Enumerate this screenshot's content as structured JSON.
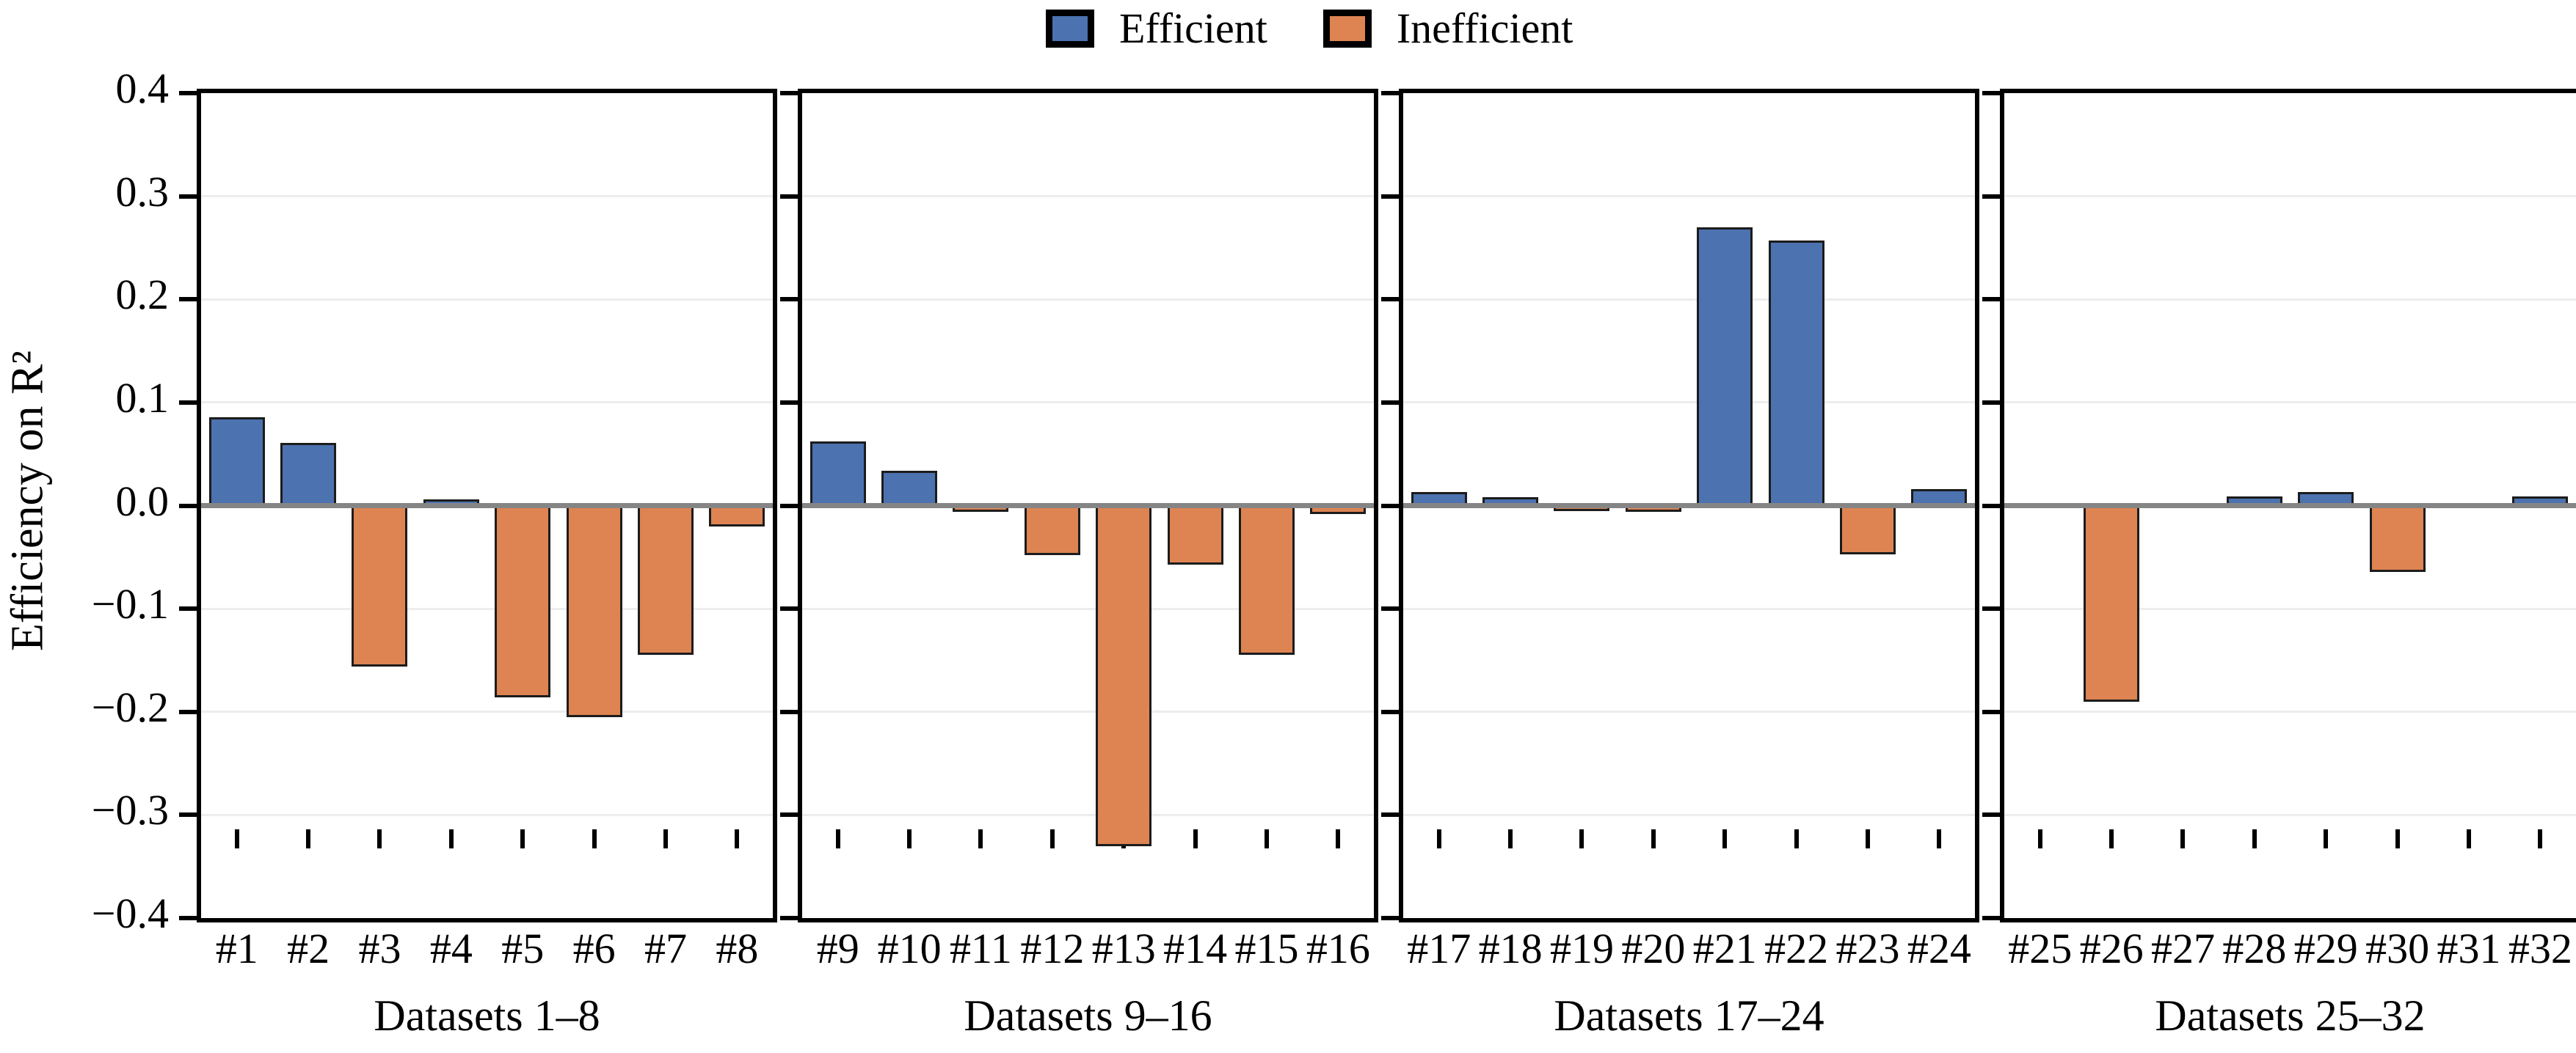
{
  "legend": [
    {
      "label": "Efficient",
      "color": "#4C72B0"
    },
    {
      "label": "Inefficient",
      "color": "#DD8452"
    }
  ],
  "colors": {
    "efficient": "#4C72B0",
    "inefficient": "#DD8452",
    "bar_edge": "#1c1c1c",
    "zero_line": "#858585",
    "grid": "#ededed",
    "axis": "#000000"
  },
  "ylabel": "Efficiency on R²",
  "yticks": [
    "0.4",
    "0.3",
    "0.2",
    "0.1",
    "0.0",
    "−0.1",
    "−0.2",
    "−0.3",
    "−0.4"
  ],
  "chart_data": [
    {
      "type": "bar",
      "title": "",
      "xlabel": "Datasets 1–8",
      "ylabel": "Efficiency on R²",
      "ylim": [
        -0.4,
        0.4
      ],
      "grid": true,
      "legend_position": "top-center",
      "categories": [
        "#1",
        "#2",
        "#3",
        "#4",
        "#5",
        "#6",
        "#7",
        "#8"
      ],
      "values": [
        0.086,
        0.061,
        -0.156,
        0.006,
        -0.186,
        -0.205,
        -0.145,
        -0.02
      ]
    },
    {
      "type": "bar",
      "title": "",
      "xlabel": "Datasets 9–16",
      "ylim": [
        -0.4,
        0.4
      ],
      "grid": true,
      "categories": [
        "#9",
        "#10",
        "#11",
        "#12",
        "#13",
        "#14",
        "#15",
        "#16"
      ],
      "values": [
        0.062,
        0.034,
        -0.006,
        -0.048,
        -0.33,
        -0.057,
        -0.145,
        -0.008
      ]
    },
    {
      "type": "bar",
      "title": "",
      "xlabel": "Datasets 17–24",
      "ylim": [
        -0.4,
        0.4
      ],
      "grid": true,
      "categories": [
        "#17",
        "#18",
        "#19",
        "#20",
        "#21",
        "#22",
        "#23",
        "#24"
      ],
      "values": [
        0.013,
        0.008,
        -0.005,
        -0.006,
        0.27,
        0.257,
        -0.047,
        0.016
      ]
    },
    {
      "type": "bar",
      "title": "",
      "xlabel": "Datasets 25–32",
      "ylim": [
        -0.4,
        0.4
      ],
      "grid": true,
      "categories": [
        "#25",
        "#26",
        "#27",
        "#28",
        "#29",
        "#30",
        "#31",
        "#32"
      ],
      "values": [
        0.0,
        -0.19,
        0.0,
        0.009,
        0.013,
        -0.064,
        0.0,
        0.009
      ]
    }
  ]
}
